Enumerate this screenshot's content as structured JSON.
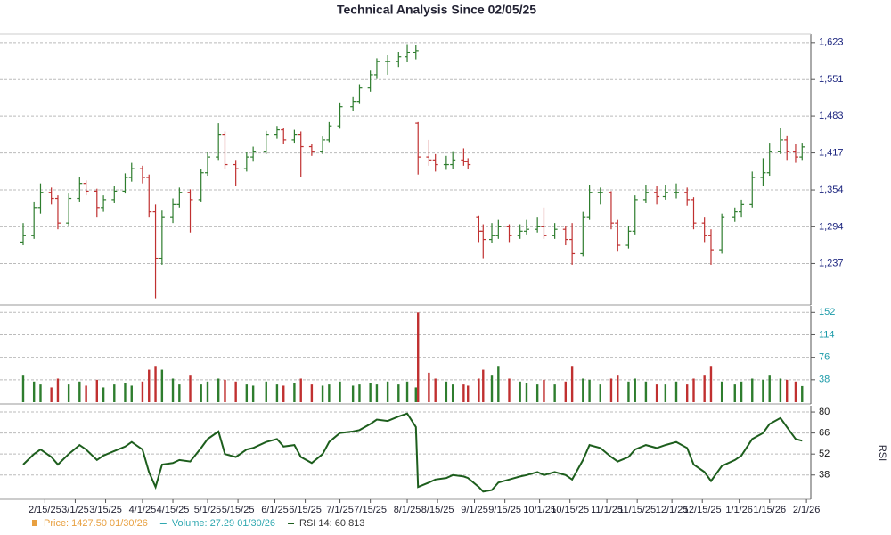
{
  "chart_data": {
    "type": "ohlc",
    "title": "Technical Analysis Since 02/05/25",
    "xlim": [
      "2025-02-05",
      "2026-02-03"
    ],
    "xticks": [
      {
        "value": "2025-02-15",
        "label": "2/15/25"
      },
      {
        "value": "2025-03-01",
        "label": "3/1/25"
      },
      {
        "value": "2025-03-15",
        "label": "3/15/25"
      },
      {
        "value": "2025-04-01",
        "label": "4/1/25"
      },
      {
        "value": "2025-04-15",
        "label": "4/15/25"
      },
      {
        "value": "2025-05-01",
        "label": "5/1/25"
      },
      {
        "value": "2025-05-15",
        "label": "5/15/25"
      },
      {
        "value": "2025-06-01",
        "label": "6/1/25"
      },
      {
        "value": "2025-06-15",
        "label": "6/15/25"
      },
      {
        "value": "2025-07-01",
        "label": "7/1/25"
      },
      {
        "value": "2025-07-15",
        "label": "7/15/25"
      },
      {
        "value": "2025-08-01",
        "label": "8/1/25"
      },
      {
        "value": "2025-08-15",
        "label": "8/15/25"
      },
      {
        "value": "2025-09-01",
        "label": "9/1/25"
      },
      {
        "value": "2025-09-15",
        "label": "9/15/25"
      },
      {
        "value": "2025-10-01",
        "label": "10/1/25"
      },
      {
        "value": "2025-10-15",
        "label": "10/15/25"
      },
      {
        "value": "2025-11-01",
        "label": "11/1/25"
      },
      {
        "value": "2025-11-15",
        "label": "11/15/25"
      },
      {
        "value": "2025-12-01",
        "label": "12/1/25"
      },
      {
        "value": "2025-12-15",
        "label": "12/15/25"
      },
      {
        "value": "2026-01-01",
        "label": "1/1/26"
      },
      {
        "value": "2026-01-15",
        "label": "1/15/26"
      },
      {
        "value": "2026-02-01",
        "label": "2/1/26"
      }
    ],
    "x": [
      "2025-02-05",
      "2025-02-10",
      "2025-02-13",
      "2025-02-18",
      "2025-02-21",
      "2025-02-26",
      "2025-03-03",
      "2025-03-06",
      "2025-03-11",
      "2025-03-14",
      "2025-03-19",
      "2025-03-24",
      "2025-03-27",
      "2025-04-01",
      "2025-04-04",
      "2025-04-07",
      "2025-04-10",
      "2025-04-15",
      "2025-04-18",
      "2025-04-23",
      "2025-04-28",
      "2025-05-01",
      "2025-05-06",
      "2025-05-09",
      "2025-05-14",
      "2025-05-19",
      "2025-05-22",
      "2025-05-28",
      "2025-06-02",
      "2025-06-05",
      "2025-06-10",
      "2025-06-13",
      "2025-06-18",
      "2025-06-23",
      "2025-06-26",
      "2025-07-01",
      "2025-07-07",
      "2025-07-10",
      "2025-07-15",
      "2025-07-18",
      "2025-07-23",
      "2025-07-28",
      "2025-08-01",
      "2025-08-05",
      "2025-08-06",
      "2025-08-11",
      "2025-08-14",
      "2025-08-19",
      "2025-08-22",
      "2025-08-27",
      "2025-08-29",
      "2025-09-03",
      "2025-09-05",
      "2025-09-09",
      "2025-09-12",
      "2025-09-17",
      "2025-09-22",
      "2025-09-25",
      "2025-09-30",
      "2025-10-03",
      "2025-10-08",
      "2025-10-13",
      "2025-10-16",
      "2025-10-21",
      "2025-10-24",
      "2025-10-29",
      "2025-11-03",
      "2025-11-06",
      "2025-11-11",
      "2025-11-14",
      "2025-11-19",
      "2025-11-24",
      "2025-11-28",
      "2025-12-03",
      "2025-12-08",
      "2025-12-11",
      "2025-12-16",
      "2025-12-19",
      "2025-12-24",
      "2025-12-30",
      "2026-01-02",
      "2026-01-07",
      "2026-01-12",
      "2026-01-15",
      "2026-01-20",
      "2026-01-23",
      "2026-01-27",
      "2026-01-30"
    ],
    "price": {
      "log_scale": true,
      "ylim": [
        1178,
        1637
      ],
      "yticks": [
        {
          "value": 1237,
          "label": "1,237"
        },
        {
          "value": 1294,
          "label": "1,294"
        },
        {
          "value": 1354,
          "label": "1,354"
        },
        {
          "value": 1417,
          "label": "1,417"
        },
        {
          "value": 1483,
          "label": "1,483"
        },
        {
          "value": 1551,
          "label": "1,551"
        },
        {
          "value": 1623,
          "label": "1,623"
        }
      ],
      "up_color": "#2e7d2e",
      "down_color": "#c03030",
      "open": [
        1270,
        1280,
        1325,
        1350,
        1340,
        1300,
        1340,
        1365,
        1352,
        1325,
        1338,
        1352,
        1375,
        1390,
        1375,
        1318,
        1245,
        1310,
        1330,
        1350,
        1338,
        1383,
        1410,
        1450,
        1397,
        1390,
        1410,
        1420,
        1450,
        1458,
        1440,
        1450,
        1428,
        1420,
        1440,
        1465,
        1500,
        1510,
        1535,
        1560,
        1586,
        1586,
        1595,
        1604,
        1470,
        1410,
        1405,
        1397,
        1397,
        1405,
        1402,
        1310,
        1287,
        1274,
        1280,
        1294,
        1280,
        1287,
        1290,
        1294,
        1280,
        1290,
        1274,
        1252,
        1310,
        1350,
        1350,
        1300,
        1265,
        1287,
        1338,
        1350,
        1343,
        1350,
        1350,
        1338,
        1300,
        1280,
        1258,
        1310,
        1318,
        1330,
        1375,
        1383,
        1420,
        1440,
        1420,
        1410
      ],
      "high": [
        1300,
        1335,
        1365,
        1358,
        1345,
        1348,
        1375,
        1370,
        1356,
        1345,
        1360,
        1382,
        1400,
        1395,
        1380,
        1330,
        1320,
        1340,
        1358,
        1355,
        1390,
        1418,
        1470,
        1455,
        1405,
        1418,
        1428,
        1456,
        1465,
        1462,
        1458,
        1455,
        1432,
        1446,
        1472,
        1508,
        1518,
        1542,
        1568,
        1592,
        1598,
        1605,
        1620,
        1618,
        1472,
        1440,
        1415,
        1412,
        1420,
        1425,
        1408,
        1312,
        1298,
        1300,
        1305,
        1298,
        1298,
        1305,
        1310,
        1325,
        1300,
        1295,
        1300,
        1318,
        1362,
        1358,
        1352,
        1305,
        1295,
        1345,
        1362,
        1360,
        1362,
        1365,
        1358,
        1342,
        1310,
        1290,
        1315,
        1325,
        1338,
        1385,
        1408,
        1435,
        1462,
        1448,
        1432,
        1435
      ],
      "low": [
        1265,
        1275,
        1315,
        1330,
        1290,
        1295,
        1335,
        1345,
        1310,
        1318,
        1332,
        1348,
        1368,
        1365,
        1310,
        1185,
        1235,
        1300,
        1325,
        1285,
        1335,
        1378,
        1405,
        1390,
        1360,
        1385,
        1402,
        1415,
        1442,
        1432,
        1435,
        1375,
        1412,
        1415,
        1436,
        1460,
        1492,
        1505,
        1528,
        1552,
        1560,
        1575,
        1585,
        1590,
        1380,
        1395,
        1385,
        1388,
        1390,
        1395,
        1390,
        1270,
        1245,
        1268,
        1275,
        1270,
        1275,
        1282,
        1285,
        1275,
        1275,
        1265,
        1235,
        1248,
        1305,
        1330,
        1290,
        1255,
        1260,
        1282,
        1332,
        1330,
        1338,
        1340,
        1328,
        1290,
        1270,
        1235,
        1252,
        1302,
        1310,
        1325,
        1360,
        1378,
        1415,
        1405,
        1400,
        1405
      ],
      "close": [
        1280,
        1325,
        1350,
        1340,
        1300,
        1340,
        1365,
        1352,
        1325,
        1338,
        1352,
        1375,
        1390,
        1375,
        1318,
        1245,
        1310,
        1330,
        1350,
        1338,
        1383,
        1410,
        1450,
        1397,
        1390,
        1410,
        1420,
        1450,
        1458,
        1440,
        1450,
        1428,
        1420,
        1440,
        1465,
        1500,
        1510,
        1535,
        1560,
        1586,
        1586,
        1595,
        1604,
        1607,
        1410,
        1405,
        1397,
        1397,
        1405,
        1402,
        1397,
        1287,
        1274,
        1280,
        1294,
        1280,
        1287,
        1290,
        1294,
        1280,
        1290,
        1274,
        1252,
        1310,
        1350,
        1350,
        1300,
        1265,
        1287,
        1338,
        1350,
        1343,
        1350,
        1350,
        1338,
        1300,
        1280,
        1258,
        1310,
        1318,
        1330,
        1375,
        1383,
        1420,
        1440,
        1420,
        1410,
        1427.5
      ]
    },
    "volume": {
      "ylim": [
        0,
        160
      ],
      "yticks": [
        38,
        76,
        114,
        152
      ],
      "values": [
        45,
        35,
        30,
        25,
        40,
        30,
        35,
        28,
        38,
        25,
        30,
        32,
        28,
        35,
        55,
        60,
        55,
        40,
        30,
        45,
        30,
        35,
        40,
        38,
        35,
        30,
        28,
        35,
        30,
        28,
        32,
        40,
        30,
        28,
        30,
        35,
        28,
        30,
        32,
        30,
        35,
        30,
        35,
        25,
        152,
        50,
        40,
        35,
        30,
        30,
        28,
        40,
        55,
        45,
        60,
        40,
        35,
        32,
        30,
        38,
        30,
        35,
        60,
        40,
        38,
        30,
        40,
        45,
        35,
        40,
        35,
        30,
        30,
        35,
        30,
        40,
        45,
        60,
        35,
        30,
        35,
        40,
        38,
        45,
        40,
        38,
        35,
        27.29
      ]
    },
    "rsi": {
      "ylim": [
        23,
        83
      ],
      "yticks": [
        38,
        52,
        66,
        80
      ],
      "axis_label": "RSI",
      "color": "#1d5e1d",
      "values": [
        45,
        52,
        55,
        50,
        45,
        52,
        58,
        55,
        48,
        51,
        54,
        57,
        60,
        55,
        40,
        30,
        45,
        46,
        48,
        47,
        56,
        62,
        67,
        52,
        50,
        55,
        56,
        60,
        62,
        57,
        58,
        50,
        46,
        52,
        60,
        66,
        67,
        68,
        72,
        75,
        74,
        77,
        79,
        70,
        30,
        33,
        35,
        36,
        38,
        37,
        36,
        30,
        27,
        28,
        33,
        35,
        37,
        38,
        40,
        38,
        40,
        38,
        35,
        48,
        58,
        56,
        50,
        47,
        50,
        55,
        58,
        56,
        58,
        60,
        56,
        45,
        40,
        34,
        44,
        48,
        51,
        62,
        66,
        72,
        76,
        70,
        62,
        60.813
      ]
    },
    "legend": [
      {
        "label": "Price: 1427.50  01/30/26",
        "color": "#e8a040"
      },
      {
        "label": "Volume: 27.29  01/30/26",
        "color": "#30a8b0"
      },
      {
        "label": "RSI 14: 60.813",
        "color": "#1d5e1d"
      }
    ]
  }
}
